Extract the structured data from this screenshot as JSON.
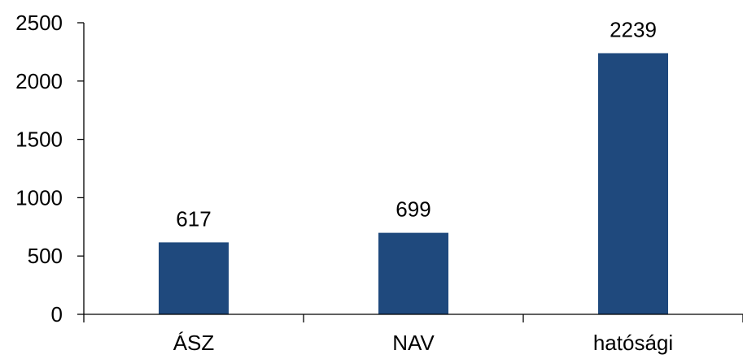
{
  "chart_data": {
    "type": "bar",
    "categories": [
      "ÁSZ",
      "NAV",
      "hatósági"
    ],
    "values": [
      617,
      699,
      2239
    ],
    "data_labels": [
      "617",
      "699",
      "2239"
    ],
    "ylim": [
      0,
      2500
    ],
    "yticks": [
      0,
      500,
      1000,
      1500,
      2000,
      2500
    ],
    "ytick_labels": [
      "0",
      "500",
      "1000",
      "1500",
      "2000",
      "2500"
    ],
    "grid": false,
    "legend": "none",
    "title": "",
    "xlabel": "",
    "ylabel": "",
    "bar_color": "#1F497D"
  }
}
